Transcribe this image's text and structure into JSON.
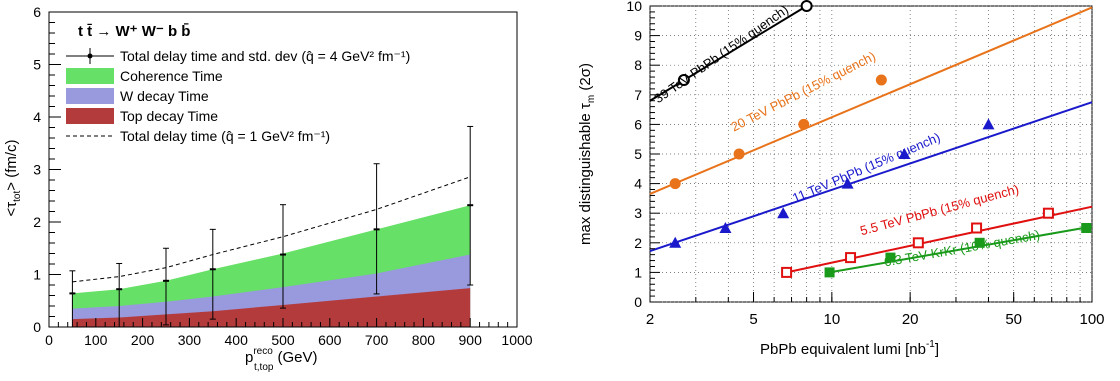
{
  "chart_data": [
    {
      "type": "area",
      "ylabel": "<τ",
      "ylabel_sub": "tot",
      "ylabel_tail": "> (fm/c)",
      "xlabel": "p",
      "xlabel_sup": "reco",
      "xlabel_sub": "t,top",
      "xlabel_tail": "(GeV)",
      "xlim": [
        0,
        1000
      ],
      "ylim": [
        0,
        6
      ],
      "x_ticks": [
        0,
        100,
        200,
        300,
        400,
        500,
        600,
        700,
        800,
        900,
        1000
      ],
      "y_ticks": [
        0,
        1,
        2,
        3,
        4,
        5,
        6
      ],
      "process_label": "t t̄ → W⁺ W⁻ b b̄",
      "legend": {
        "placement": "top-left",
        "entries": [
          {
            "label": "Total delay time and std. dev (q̂ = 4 GeV² fm⁻¹)",
            "style": "marker-errorbar",
            "color": "#000000"
          },
          {
            "label": "Coherence Time",
            "style": "fill",
            "color": "#66e066"
          },
          {
            "label": "W decay Time",
            "style": "fill",
            "color": "#9999dd"
          },
          {
            "label": "Top decay Time",
            "style": "fill",
            "color": "#b33b3b"
          },
          {
            "label": "Total delay time (q̂ = 1 GeV² fm⁻¹)",
            "style": "dashed",
            "color": "#000000"
          }
        ]
      },
      "x": [
        50,
        150,
        250,
        350,
        500,
        700,
        900
      ],
      "series": [
        {
          "name": "Top decay Time",
          "color": "#b33b3b",
          "values": [
            0.15,
            0.18,
            0.24,
            0.3,
            0.42,
            0.58,
            0.74
          ]
        },
        {
          "name": "W decay Time",
          "color": "#9999dd",
          "values": [
            0.35,
            0.4,
            0.48,
            0.58,
            0.76,
            1.02,
            1.38
          ]
        },
        {
          "name": "Coherence Time",
          "color": "#66e066",
          "values": [
            0.64,
            0.72,
            0.88,
            1.1,
            1.4,
            1.86,
            2.32
          ]
        }
      ],
      "total_delay": {
        "values": [
          0.64,
          0.72,
          0.88,
          1.1,
          1.38,
          1.86,
          2.32
        ],
        "err_low": [
          0.64,
          0.72,
          0.84,
          0.95,
          1.02,
          1.23,
          1.52
        ],
        "err_high": [
          0.43,
          0.49,
          0.62,
          0.76,
          0.95,
          1.25,
          1.5
        ]
      },
      "dashed_total_q1": {
        "x": [
          50,
          150,
          250,
          350,
          500,
          700,
          900
        ],
        "values": [
          0.86,
          0.96,
          1.13,
          1.38,
          1.72,
          2.24,
          2.86
        ]
      }
    },
    {
      "type": "line",
      "ylabel": "max distinguishable τ",
      "ylabel_sub": "m",
      "ylabel_tail": " (2σ)",
      "xlabel": "PbPb equivalent lumi [nb",
      "xlabel_sup": "-1",
      "xlabel_tail": "]",
      "x_scale": "log",
      "xlim": [
        2,
        100
      ],
      "ylim": [
        0,
        10
      ],
      "x_ticks": [
        2,
        5,
        10,
        20,
        50,
        100
      ],
      "y_ticks": [
        0,
        1,
        2,
        3,
        4,
        5,
        6,
        7,
        8,
        9,
        10
      ],
      "series": [
        {
          "name": "39 TeV PbPb (15% quench)",
          "color": "#000000",
          "marker": "open-circle",
          "points": {
            "x": [
              2.7,
              8.0
            ],
            "y": [
              7.5,
              10.0
            ]
          },
          "line": {
            "x": [
              2.0,
              8.0
            ],
            "y": [
              6.8,
              10.0
            ]
          }
        },
        {
          "name": "20 TeV PbPb (15% quench)",
          "color": "#e8731a",
          "marker": "filled-circle",
          "points": {
            "x": [
              2.5,
              4.4,
              7.8,
              15.5
            ],
            "y": [
              4.0,
              5.0,
              6.0,
              7.5
            ]
          },
          "line": {
            "x": [
              2.0,
              100.0
            ],
            "y": [
              3.65,
              9.95
            ]
          }
        },
        {
          "name": "11 TeV PbPb (15% quench)",
          "color": "#1a1acc",
          "marker": "filled-triangle",
          "points": {
            "x": [
              2.5,
              3.9,
              6.5,
              11.5,
              19.0,
              40.0
            ],
            "y": [
              2.0,
              2.5,
              3.0,
              4.0,
              5.0,
              6.0
            ]
          },
          "line": {
            "x": [
              2.0,
              100.0
            ],
            "y": [
              1.72,
              6.75
            ]
          }
        },
        {
          "name": "5.5 TeV PbPb (15% quench)",
          "color": "#e01010",
          "marker": "open-square",
          "points": {
            "x": [
              6.7,
              11.8,
              21.5,
              36.0,
              68.0
            ],
            "y": [
              1.0,
              1.5,
              2.0,
              2.5,
              3.0
            ]
          },
          "line": {
            "x": [
              6.7,
              100.0
            ],
            "y": [
              1.0,
              3.22
            ]
          }
        },
        {
          "name": "6.3 TeV KrKr (10% quench)",
          "color": "#1a9a1a",
          "marker": "filled-square",
          "points": {
            "x": [
              9.8,
              16.8,
              37.0,
              95.0
            ],
            "y": [
              1.0,
              1.5,
              2.0,
              2.5
            ]
          },
          "line": {
            "x": [
              9.8,
              100.0
            ],
            "y": [
              1.0,
              2.55
            ]
          }
        }
      ]
    }
  ]
}
